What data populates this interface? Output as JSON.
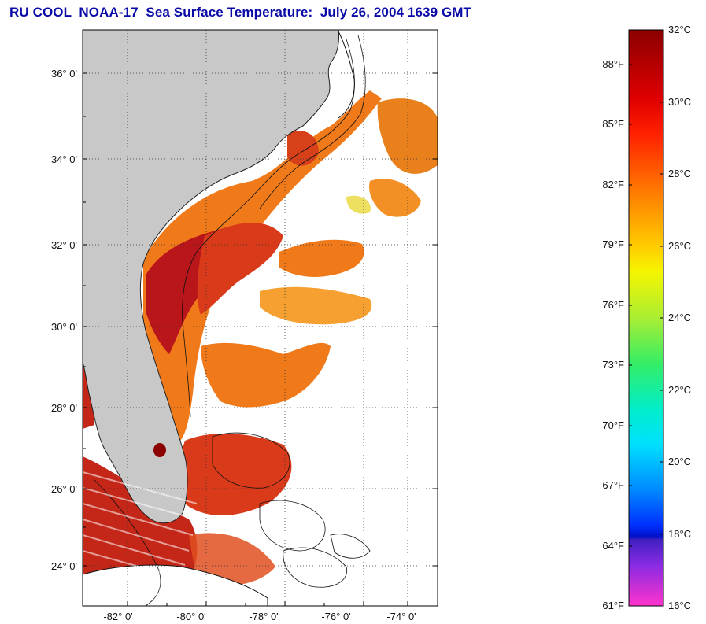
{
  "title": "RU COOL  NOAA-17  Sea Surface Temperature:  July 26, 2004 1639 GMT",
  "map": {
    "lat_labels": [
      "36° 0'",
      "34° 0'",
      "32° 0'",
      "30° 0'",
      "28° 0'",
      "26° 0'",
      "24° 0'"
    ],
    "lon_labels": [
      "-82° 0'",
      "-80° 0'",
      "-78° 0'",
      "-76° 0'",
      "-74° 0'"
    ]
  },
  "colorbar": {
    "celsius_labels": [
      "32°C",
      "30°C",
      "28°C",
      "26°C",
      "24°C",
      "22°C",
      "20°C",
      "18°C",
      "16°C"
    ],
    "fahrenheit_labels": [
      "88°F",
      "85°F",
      "82°F",
      "79°F",
      "76°F",
      "73°F",
      "70°F",
      "67°F",
      "64°F",
      "61°F"
    ],
    "colors": {
      "top": "#8b0000",
      "red": "#ff1a00",
      "orange": "#ff8c00",
      "yellow": "#f5f500",
      "green": "#33ee66",
      "cyan": "#00e5ff",
      "blue": "#0044ff",
      "navy": "#0010c8",
      "purple": "#8a2be2",
      "magenta": "#ff33cc"
    }
  },
  "colors": {
    "land": "#c8c8c8",
    "title": "#0a0aa8",
    "sst_dark": "#a51414",
    "sst_red": "#d83a1a",
    "sst_orange": "#f07a1a",
    "sst_light_orange": "#f5a030",
    "sst_yellow": "#e8d83a"
  }
}
